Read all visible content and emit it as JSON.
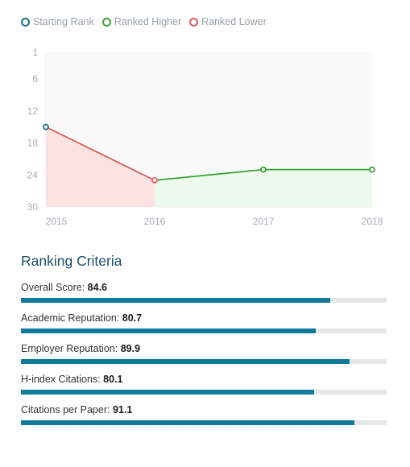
{
  "legend": {
    "starting": {
      "label": "Starting Rank",
      "color": "#1a6f8d"
    },
    "higher": {
      "label": "Ranked Higher",
      "color": "#3aa535"
    },
    "lower": {
      "label": "Ranked Lower",
      "color": "#e05c5c"
    }
  },
  "chart_data": {
    "type": "line",
    "x": [
      "2015",
      "2016",
      "2017",
      "2018"
    ],
    "values": [
      15,
      25,
      23,
      23
    ],
    "y_ticks": [
      1,
      6,
      12,
      18,
      24,
      30
    ],
    "ylim": [
      1,
      30
    ],
    "y_inverted": true,
    "segments": [
      {
        "from": 0,
        "to": 1,
        "kind": "lower"
      },
      {
        "from": 1,
        "to": 3,
        "kind": "higher"
      }
    ],
    "start_marker": 0
  },
  "criteria": {
    "title": "Ranking Criteria",
    "max": 100,
    "items": [
      {
        "label": "Overall Score:",
        "value": "84.6"
      },
      {
        "label": "Academic Reputation:",
        "value": "80.7"
      },
      {
        "label": "Employer Reputation:",
        "value": "89.9"
      },
      {
        "label": "H-index Citations:",
        "value": "80.1"
      },
      {
        "label": "Citations per Paper:",
        "value": "91.1"
      }
    ]
  }
}
